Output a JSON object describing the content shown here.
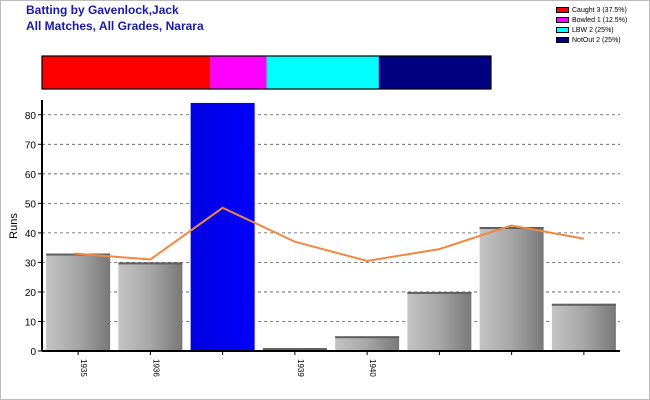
{
  "title_line1": "Batting by Gavenlock,Jack",
  "title_line2": "All Matches, All Grades, Narara",
  "legend": [
    {
      "label": "Caught 3 (37.5%)",
      "color": "#ff0000"
    },
    {
      "label": "Bowled 1 (12.5%)",
      "color": "#ff00ff"
    },
    {
      "label": "LBW 2 (25%)",
      "color": "#00ffff"
    },
    {
      "label": "NotOut 2 (25%)",
      "color": "#000080"
    }
  ],
  "dismissal_bar": [
    {
      "name": "Caught",
      "value": 3,
      "color": "#ff0000"
    },
    {
      "name": "Bowled",
      "value": 1,
      "color": "#ff00ff"
    },
    {
      "name": "LBW",
      "value": 2,
      "color": "#00ffff"
    },
    {
      "name": "NotOut",
      "value": 2,
      "color": "#000080"
    }
  ],
  "chart_data": {
    "type": "bar",
    "ylabel": "Runs",
    "ylim": [
      0,
      85
    ],
    "yticks": [
      0,
      10,
      20,
      30,
      40,
      50,
      60,
      70,
      80
    ],
    "grid": true,
    "categories": [
      "1935",
      "1936",
      "",
      "1939",
      "1940",
      "",
      "",
      ""
    ],
    "values": [
      33,
      30,
      84,
      1,
      5,
      20,
      42,
      16
    ],
    "highlight_index": 2,
    "trend_line": [
      33,
      31,
      48.5,
      37,
      30.5,
      34.5,
      42.5,
      38
    ],
    "colors": {
      "bar": "#a8a8a8",
      "highlight": "#0000ee",
      "trend": "#ee8844"
    }
  }
}
